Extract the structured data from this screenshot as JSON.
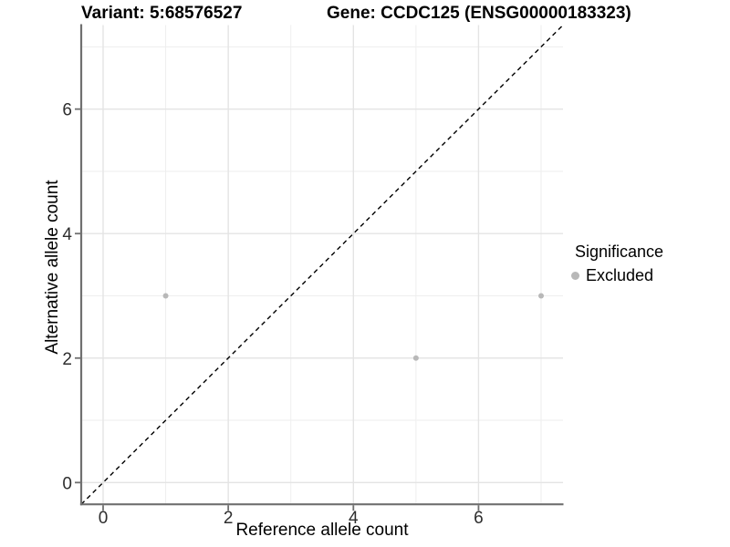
{
  "chart_data": {
    "type": "scatter",
    "title_left": "Variant: 5:68576527",
    "title_right": "Gene: CCDC125 (ENSG00000183323)",
    "xlabel": "Reference allele count",
    "ylabel": "Alternative allele count",
    "xlim": [
      -0.35,
      7.35
    ],
    "ylim": [
      -0.35,
      7.35
    ],
    "x_ticks": [
      0,
      2,
      4,
      6
    ],
    "y_ticks": [
      0,
      2,
      4,
      6
    ],
    "x_tick_labels": [
      "0",
      "2",
      "4",
      "6"
    ],
    "y_tick_labels": [
      "0",
      "2",
      "4",
      "6"
    ],
    "x_minor_gridlines": [
      1,
      3,
      5,
      7
    ],
    "y_minor_gridlines": [
      1,
      3,
      5,
      7
    ],
    "grid": "on",
    "series": [
      {
        "name": "Excluded",
        "marker": "circle",
        "color": "#b8b8b8",
        "points": [
          [
            1,
            3
          ],
          [
            5,
            2
          ],
          [
            7,
            3
          ]
        ]
      }
    ],
    "reference_line": {
      "kind": "identity y=x",
      "style": "dashed",
      "color": "#000000"
    },
    "legend": {
      "title": "Significance",
      "position": "right",
      "items": [
        {
          "label": "Excluded",
          "color": "#b8b8b8",
          "marker": "circle"
        }
      ]
    },
    "style": {
      "background": "#ffffff",
      "grid_major_color": "#e4e4e4",
      "grid_minor_color": "#eeeeee",
      "axis_line_color": "#707070",
      "tick_label_color": "#2e2e2e",
      "text_color": "#000000"
    }
  }
}
